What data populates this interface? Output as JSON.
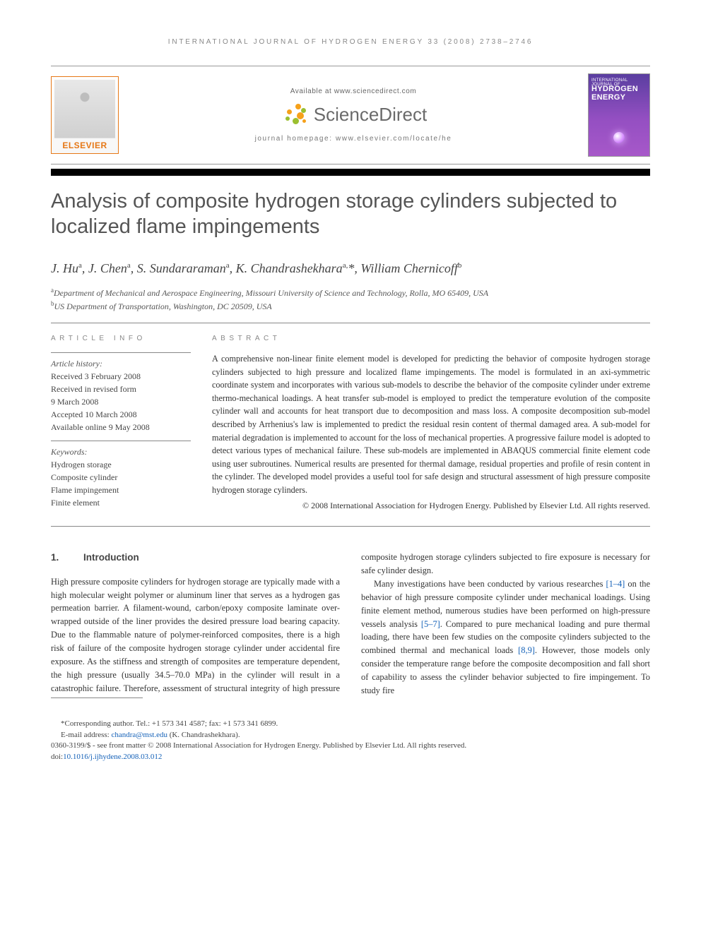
{
  "running_head": "INTERNATIONAL JOURNAL OF HYDROGEN ENERGY 33 (2008) 2738–2746",
  "header": {
    "elsevier": "ELSEVIER",
    "available_at": "Available at www.sciencedirect.com",
    "sciencedirect": "ScienceDirect",
    "journal_homepage": "journal homepage: www.elsevier.com/locate/he",
    "cover_small": "INTERNATIONAL JOURNAL OF",
    "cover_big": "HYDROGEN ENERGY"
  },
  "title": "Analysis of composite hydrogen storage cylinders subjected to localized flame impingements",
  "authors_html": "J. Hu<sup>a</sup>, J. Chen<sup>a</sup>, S. Sundararaman<sup>a</sup>, K. Chandrashekhara<sup>a,</sup>*, William Chernicoff<sup>b</sup>",
  "affiliations": {
    "a": "Department of Mechanical and Aerospace Engineering, Missouri University of Science and Technology, Rolla, MO 65409, USA",
    "b": "US Department of Transportation, Washington, DC 20509, USA"
  },
  "info": {
    "head": "ARTICLE INFO",
    "history_label": "Article history:",
    "history": [
      "Received 3 February 2008",
      "Received in revised form",
      "9 March 2008",
      "Accepted 10 March 2008",
      "Available online 9 May 2008"
    ],
    "keywords_label": "Keywords:",
    "keywords": [
      "Hydrogen storage",
      "Composite cylinder",
      "Flame impingement",
      "Finite element"
    ]
  },
  "abstract": {
    "head": "ABSTRACT",
    "text": "A comprehensive non-linear finite element model is developed for predicting the behavior of composite hydrogen storage cylinders subjected to high pressure and localized flame impingements. The model is formulated in an axi-symmetric coordinate system and incorporates with various sub-models to describe the behavior of the composite cylinder under extreme thermo-mechanical loadings. A heat transfer sub-model is employed to predict the temperature evolution of the composite cylinder wall and accounts for heat transport due to decomposition and mass loss. A composite decomposition sub-model described by Arrhenius's law is implemented to predict the residual resin content of thermal damaged area. A sub-model for material degradation is implemented to account for the loss of mechanical properties. A progressive failure model is adopted to detect various types of mechanical failure. These sub-models are implemented in ABAQUS commercial finite element code using user subroutines. Numerical results are presented for thermal damage, residual properties and profile of resin content in the cylinder. The developed model provides a useful tool for safe design and structural assessment of high pressure composite hydrogen storage cylinders.",
    "copyright": "© 2008 International Association for Hydrogen Energy. Published by Elsevier Ltd. All rights reserved."
  },
  "section1": {
    "num": "1.",
    "title": "Introduction",
    "p1": "High pressure composite cylinders for hydrogen storage are typically made with a high molecular weight polymer or aluminum liner that serves as a hydrogen gas permeation barrier. A filament-wound, carbon/epoxy composite laminate over-wrapped outside of the liner provides the desired pressure load bearing capacity. Due to the flammable nature of polymer-reinforced composites, there is a high risk of failure of the composite hydrogen storage cylinder under accidental fire exposure. As the stiffness and strength of composites are temperature dependent, the high pressure (usually 34.5–70.0 MPa) in the cylinder will result in a catastrophic failure. Therefore, assessment of structural",
    "p1b": "integrity of high pressure composite hydrogen storage cylinders subjected to fire exposure is necessary for safe cylinder design.",
    "p2_pre": "Many investigations have been conducted by various researches ",
    "p2_ref1": "[1–4]",
    "p2_mid1": " on the behavior of high pressure composite cylinder under mechanical loadings. Using finite element method, numerous studies have been performed on high-pressure vessels analysis ",
    "p2_ref2": "[5–7]",
    "p2_mid2": ". Compared to pure mechanical loading and pure thermal loading, there have been few studies on the composite cylinders subjected to the combined thermal and mechanical loads ",
    "p2_ref3": "[8,9]",
    "p2_end": ". However, those models only consider the temperature range before the composite decomposition and fall short of capability to assess the cylinder behavior subjected to fire impingement. To study fire"
  },
  "footer": {
    "corresponding": "*Corresponding author. Tel.: +1 573 341 4587; fax: +1 573 341 6899.",
    "email_label": "E-mail address: ",
    "email": "chandra@mst.edu",
    "email_paren": " (K. Chandrashekhara).",
    "front_matter": "0360-3199/$ - see front matter © 2008 International Association for Hydrogen Energy. Published by Elsevier Ltd. All rights reserved.",
    "doi_label": "doi:",
    "doi": "10.1016/j.ijhydene.2008.03.012"
  },
  "colors": {
    "link": "#1461b8",
    "elsevier_orange": "#e67817",
    "burst_orange": "#f6a11a",
    "burst_green": "#9bbf2f"
  }
}
